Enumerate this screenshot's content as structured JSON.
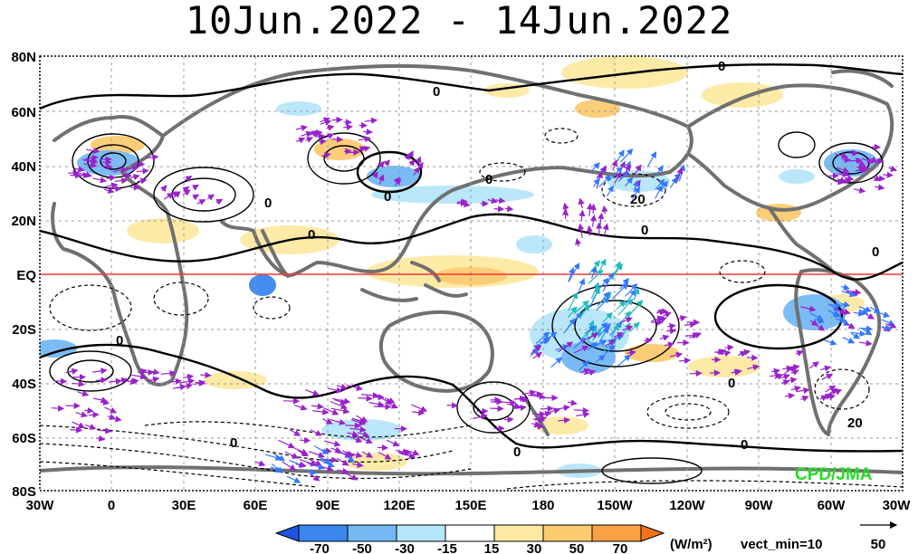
{
  "title": "10Jun.2022 - 14Jun.2022",
  "lat_labels": [
    "80N",
    "60N",
    "40N",
    "20N",
    "EQ",
    "20S",
    "40S",
    "60S",
    "80S"
  ],
  "lon_labels": [
    "30W",
    "0",
    "30E",
    "60E",
    "90E",
    "120E",
    "150E",
    "180",
    "150W",
    "120W",
    "90W",
    "60W",
    "30W"
  ],
  "contour_zero_label": "0",
  "contour_20_label": "20",
  "credit": "CPD/JMA",
  "colorbar": {
    "ticks": [
      "-70",
      "-50",
      "-30",
      "-15",
      "15",
      "30",
      "50",
      "70"
    ],
    "colors": [
      "#1d55e0",
      "#3a86ee",
      "#74b8f4",
      "#b6e6f9",
      "#ffffff",
      "#fde9a2",
      "#fbcb70",
      "#f8a244",
      "#f2731d"
    ],
    "units": "(W/m²)",
    "vect_min": "vect_min=10",
    "ref_vector": "50"
  },
  "colors": {
    "equator": "#ff3333",
    "coast": "#707070",
    "vector_purple": "#9922cc",
    "vector_blue": "#3377ff",
    "vector_cyan": "#22bbbb",
    "vector_green": "#55cc55"
  }
}
